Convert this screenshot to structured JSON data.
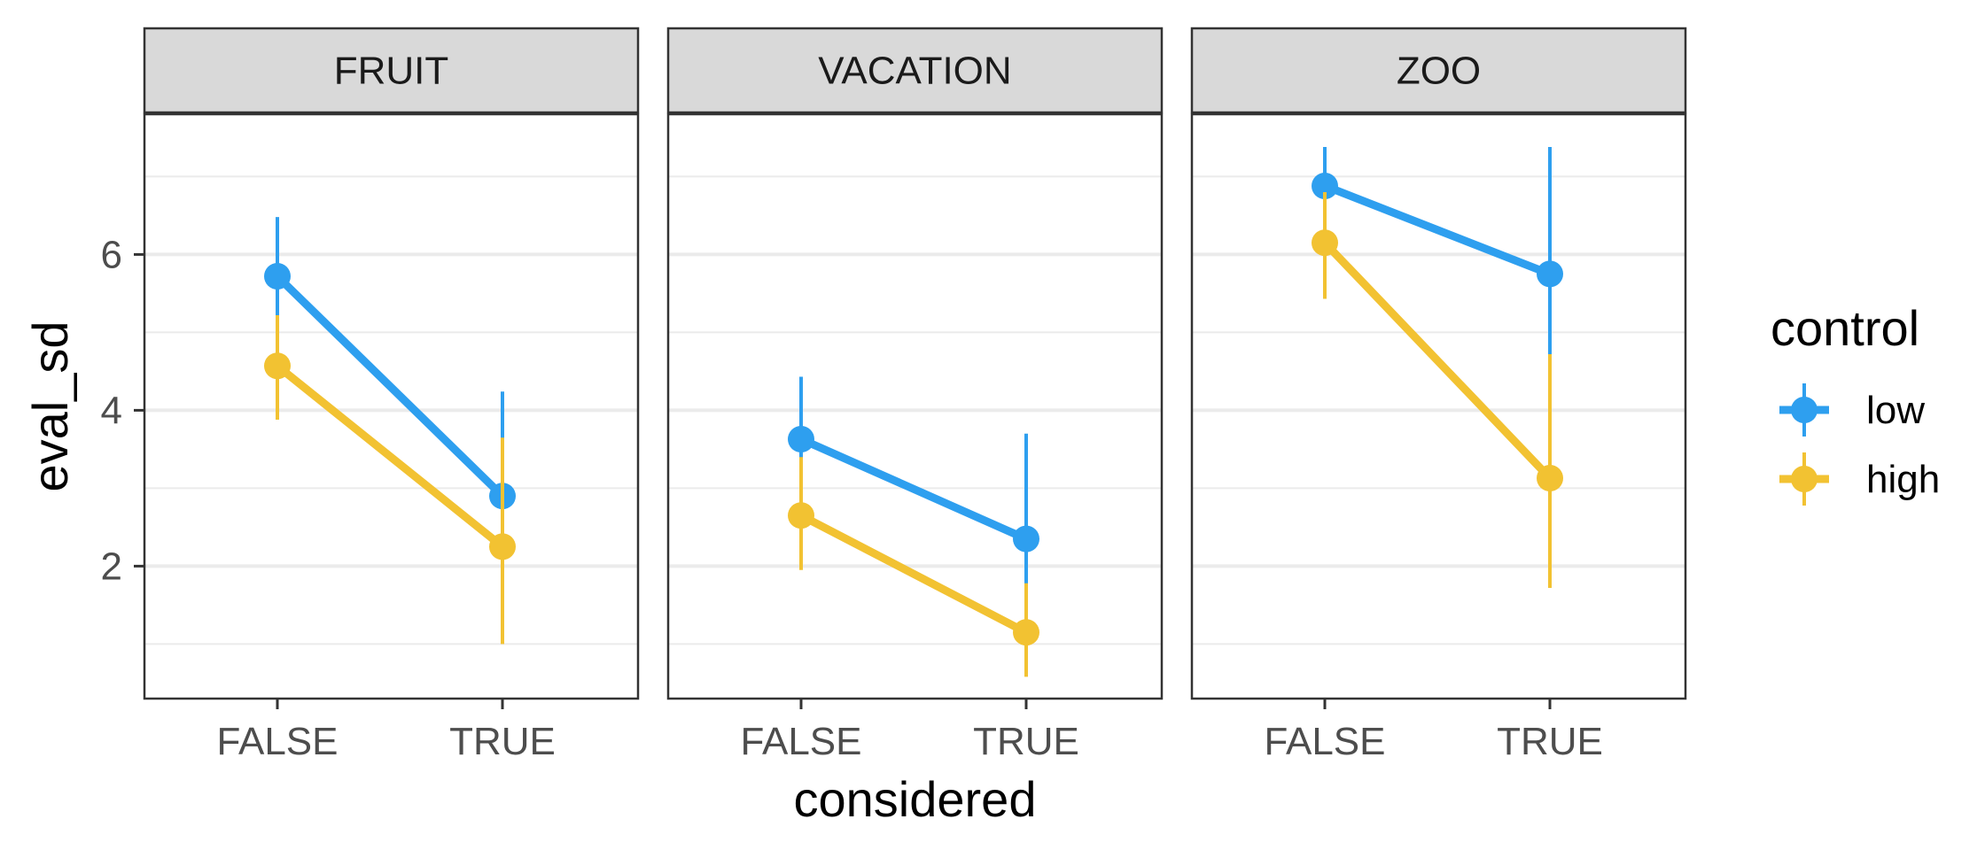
{
  "chart_data": {
    "type": "line",
    "facet_labels": [
      "FRUIT",
      "VACATION",
      "ZOO"
    ],
    "categories": [
      "FALSE",
      "TRUE"
    ],
    "xlabel": "considered",
    "ylabel": "eval_sd",
    "ylim": [
      0.3,
      7.8
    ],
    "yticks": [
      2,
      4,
      6
    ],
    "yticks_labels": [
      "2",
      "4",
      "6"
    ],
    "grid": true,
    "legend": {
      "title": "control",
      "placement": "right"
    },
    "series": [
      {
        "name": "low",
        "color": "#2E9FEF",
        "values": [
          [
            5.72,
            2.9
          ],
          [
            3.63,
            2.35
          ],
          [
            6.88,
            5.75
          ]
        ],
        "err_low": [
          [
            5.02,
            1.68
          ],
          [
            2.85,
            1.0
          ],
          [
            6.38,
            4.18
          ]
        ],
        "err_high": [
          [
            6.48,
            4.24
          ],
          [
            4.43,
            3.7
          ],
          [
            7.38,
            7.38
          ]
        ]
      },
      {
        "name": "high",
        "color": "#F2C232",
        "values": [
          [
            4.57,
            2.25
          ],
          [
            2.65,
            1.15
          ],
          [
            6.15,
            3.13
          ]
        ],
        "err_low": [
          [
            3.88,
            1.0
          ],
          [
            1.95,
            0.58
          ],
          [
            5.43,
            1.72
          ]
        ],
        "err_high": [
          [
            5.22,
            3.65
          ],
          [
            3.4,
            1.78
          ],
          [
            6.8,
            4.72
          ]
        ]
      }
    ]
  }
}
